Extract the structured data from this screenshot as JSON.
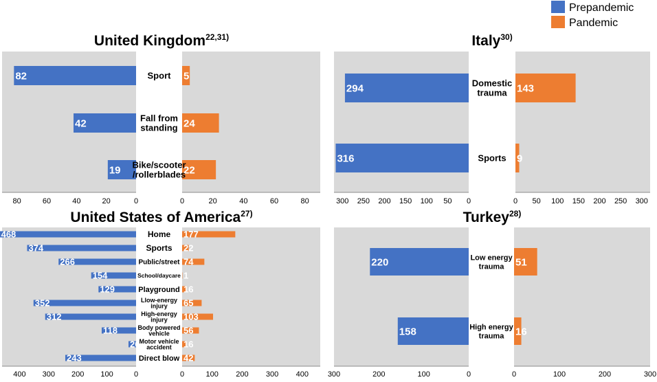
{
  "colors": {
    "prepandemic": "#4472C4",
    "pandemic": "#ED7D31",
    "panel": "#D9D9D9"
  },
  "legend": {
    "prepandemic": "Prepandemic",
    "pandemic": "Pandemic"
  },
  "chart_data": [
    {
      "type": "bar",
      "title": "United Kingdom",
      "title_superscript": "22,31)",
      "categories": [
        [
          "Sport"
        ],
        [
          "Fall from",
          "standing"
        ],
        [
          "Bike/scooter",
          "/rollerblades"
        ]
      ],
      "series": [
        {
          "name": "Prepandemic",
          "values": [
            82,
            42,
            19
          ]
        },
        {
          "name": "Pandemic",
          "values": [
            5,
            24,
            22
          ]
        }
      ],
      "xlim_left": [
        0,
        90
      ],
      "xlim_right": [
        0,
        90
      ],
      "ticks_left": [
        80,
        60,
        40,
        20,
        0
      ],
      "ticks_right": [
        0,
        20,
        40,
        60,
        80
      ]
    },
    {
      "type": "bar",
      "title": "Italy",
      "title_superscript": "30)",
      "categories": [
        [
          "Domestic",
          "trauma"
        ],
        [
          "Sports"
        ]
      ],
      "series": [
        {
          "name": "Prepandemic",
          "values": [
            294,
            316
          ]
        },
        {
          "name": "Pandemic",
          "values": [
            143,
            9
          ]
        }
      ],
      "xlim_left": [
        0,
        320
      ],
      "xlim_right": [
        0,
        320
      ],
      "ticks_left": [
        300,
        250,
        200,
        150,
        100,
        50,
        0
      ],
      "ticks_right": [
        0,
        50,
        100,
        150,
        200,
        250,
        300
      ]
    },
    {
      "type": "bar",
      "title": "United States of America",
      "title_superscript": "27)",
      "categories": [
        [
          "Home"
        ],
        [
          "Sports"
        ],
        [
          "Public/street"
        ],
        [
          "School/daycare"
        ],
        [
          "Playground"
        ],
        [
          "Llow-energy",
          "injury"
        ],
        [
          "High-energy",
          "injury"
        ],
        [
          "Body powered",
          "vehicle"
        ],
        [
          "Motor vehicle",
          "accident"
        ],
        [
          "Direct blow"
        ]
      ],
      "series": [
        {
          "name": "Prepandemic",
          "values": [
            468,
            374,
            266,
            154,
            129,
            352,
            312,
            118,
            26,
            243
          ]
        },
        {
          "name": "Pandemic",
          "values": [
            177,
            22,
            74,
            1,
            16,
            65,
            103,
            56,
            16,
            42
          ]
        }
      ],
      "xlim_left": [
        0,
        460
      ],
      "xlim_right": [
        0,
        460
      ],
      "ticks_left": [
        400,
        300,
        200,
        100,
        0
      ],
      "ticks_right": [
        0,
        100,
        200,
        300,
        400
      ]
    },
    {
      "type": "bar",
      "title": "Turkey",
      "title_superscript": "28)",
      "categories": [
        [
          "Low energy",
          "trauma"
        ],
        [
          "High energy",
          "trauma"
        ]
      ],
      "series": [
        {
          "name": "Prepandemic",
          "values": [
            220,
            158
          ]
        },
        {
          "name": "Pandemic",
          "values": [
            51,
            16
          ]
        }
      ],
      "xlim_left": [
        0,
        300
      ],
      "xlim_right": [
        0,
        300
      ],
      "ticks_left": [
        300,
        200,
        100,
        0
      ],
      "ticks_right": [
        0,
        100,
        200,
        300
      ]
    }
  ]
}
